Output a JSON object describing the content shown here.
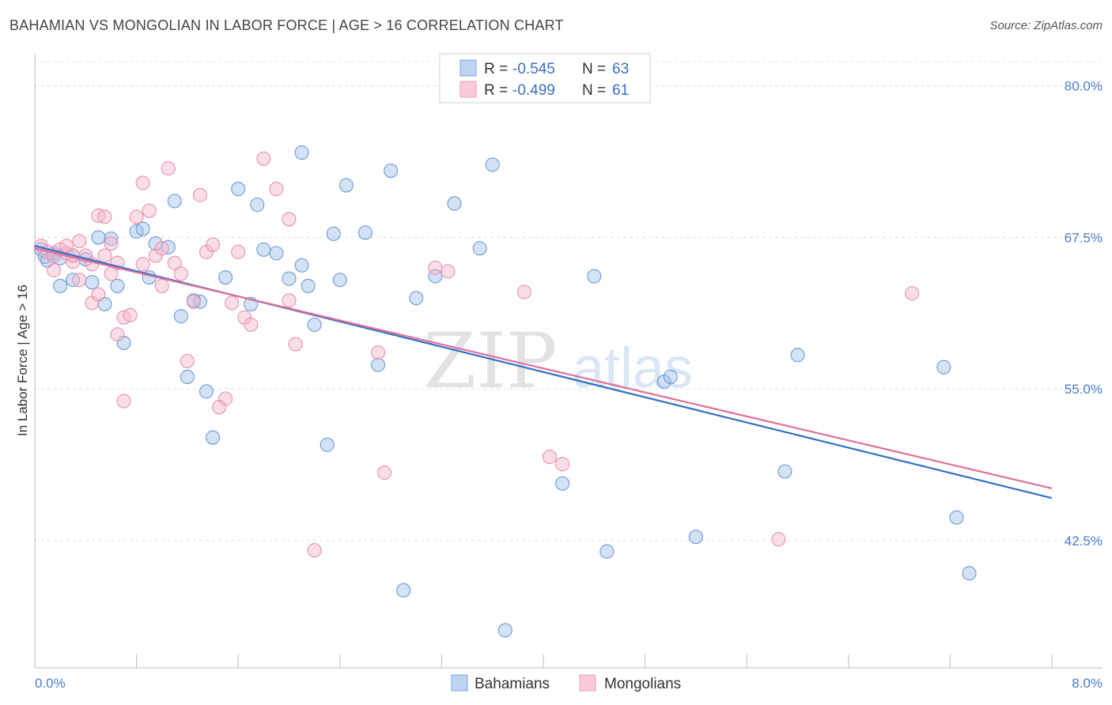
{
  "title": "BAHAMIAN VS MONGOLIAN IN LABOR FORCE | AGE > 16 CORRELATION CHART",
  "source": "Source: ZipAtlas.com",
  "watermark": {
    "zip": "ZIP",
    "atlas": "atlas"
  },
  "chart_data": {
    "type": "scatter",
    "xlabel": "",
    "ylabel": "In Labor Force | Age > 16",
    "xlim": [
      0.0,
      8.0
    ],
    "ylim": [
      32.0,
      82.0
    ],
    "x_tick_labels": [
      "0.0%",
      "8.0%"
    ],
    "y_ticks": [
      42.5,
      55.0,
      67.5,
      80.0
    ],
    "y_tick_labels": [
      "42.5%",
      "55.0%",
      "67.5%",
      "80.0%"
    ],
    "grid": true,
    "legend_placement": "top-center",
    "legend": [
      {
        "r_label": "R =",
        "r_value": "-0.545",
        "n_label": "N =",
        "n_value": "63"
      },
      {
        "r_label": "R =",
        "r_value": "-0.499",
        "n_label": "N =",
        "n_value": "61"
      }
    ],
    "series": [
      {
        "name": "Bahamians",
        "color": "#9dbfe8",
        "line_color": "#3070c8",
        "trend": [
          [
            0.0,
            66.8
          ],
          [
            8.0,
            46.0
          ]
        ],
        "points": [
          [
            0.05,
            66.5
          ],
          [
            0.08,
            65.9
          ],
          [
            0.1,
            65.6
          ],
          [
            0.15,
            66.2
          ],
          [
            0.2,
            65.8
          ],
          [
            0.3,
            66.0
          ],
          [
            0.3,
            64.0
          ],
          [
            0.4,
            65.7
          ],
          [
            0.5,
            67.5
          ],
          [
            0.6,
            67.4
          ],
          [
            0.8,
            68.0
          ],
          [
            0.85,
            68.2
          ],
          [
            0.95,
            67.0
          ],
          [
            1.05,
            66.7
          ],
          [
            1.1,
            70.5
          ],
          [
            1.2,
            56.0
          ],
          [
            1.3,
            62.2
          ],
          [
            1.4,
            51.0
          ],
          [
            1.5,
            64.2
          ],
          [
            1.6,
            71.5
          ],
          [
            1.7,
            62.0
          ],
          [
            1.75,
            70.2
          ],
          [
            1.8,
            66.5
          ],
          [
            1.9,
            66.2
          ],
          [
            2.0,
            64.1
          ],
          [
            2.1,
            65.2
          ],
          [
            2.1,
            74.5
          ],
          [
            2.15,
            63.5
          ],
          [
            2.2,
            60.3
          ],
          [
            2.3,
            50.4
          ],
          [
            2.35,
            67.8
          ],
          [
            2.4,
            64.0
          ],
          [
            2.45,
            71.8
          ],
          [
            2.6,
            67.9
          ],
          [
            2.7,
            57.0
          ],
          [
            2.8,
            73.0
          ],
          [
            2.9,
            38.4
          ],
          [
            3.0,
            62.5
          ],
          [
            3.15,
            64.3
          ],
          [
            3.3,
            70.3
          ],
          [
            3.5,
            66.6
          ],
          [
            3.6,
            73.5
          ],
          [
            3.7,
            35.1
          ],
          [
            4.15,
            47.2
          ],
          [
            4.4,
            64.3
          ],
          [
            4.5,
            41.6
          ],
          [
            4.95,
            55.6
          ],
          [
            5.0,
            56.0
          ],
          [
            5.2,
            42.8
          ],
          [
            5.9,
            48.2
          ],
          [
            6.0,
            57.8
          ],
          [
            7.15,
            56.8
          ],
          [
            7.25,
            44.4
          ],
          [
            7.35,
            39.8
          ],
          [
            0.2,
            63.5
          ],
          [
            0.45,
            63.8
          ],
          [
            0.55,
            62.0
          ],
          [
            0.7,
            58.8
          ],
          [
            0.9,
            64.2
          ],
          [
            1.15,
            61.0
          ],
          [
            1.25,
            62.3
          ],
          [
            1.35,
            54.8
          ],
          [
            0.65,
            63.5
          ]
        ]
      },
      {
        "name": "Mongolians",
        "color": "#f5b5c8",
        "line_color": "#e0709a",
        "trend": [
          [
            0.0,
            66.6
          ],
          [
            8.0,
            46.8
          ]
        ],
        "points": [
          [
            0.05,
            66.8
          ],
          [
            0.1,
            66.3
          ],
          [
            0.15,
            66.0
          ],
          [
            0.2,
            66.5
          ],
          [
            0.25,
            66.2
          ],
          [
            0.3,
            65.5
          ],
          [
            0.35,
            67.2
          ],
          [
            0.4,
            66.0
          ],
          [
            0.45,
            65.3
          ],
          [
            0.5,
            69.3
          ],
          [
            0.55,
            69.2
          ],
          [
            0.6,
            67.0
          ],
          [
            0.65,
            65.4
          ],
          [
            0.7,
            60.9
          ],
          [
            0.75,
            61.1
          ],
          [
            0.8,
            69.2
          ],
          [
            0.85,
            65.3
          ],
          [
            0.9,
            69.7
          ],
          [
            0.95,
            66.0
          ],
          [
            1.0,
            66.6
          ],
          [
            1.05,
            73.2
          ],
          [
            1.1,
            65.4
          ],
          [
            1.2,
            57.3
          ],
          [
            1.25,
            62.2
          ],
          [
            1.3,
            71.0
          ],
          [
            1.35,
            66.3
          ],
          [
            1.4,
            66.9
          ],
          [
            1.5,
            54.2
          ],
          [
            1.55,
            62.1
          ],
          [
            1.6,
            66.3
          ],
          [
            1.65,
            60.9
          ],
          [
            1.7,
            60.3
          ],
          [
            1.8,
            74.0
          ],
          [
            1.9,
            71.5
          ],
          [
            2.0,
            69.0
          ],
          [
            2.05,
            58.7
          ],
          [
            2.2,
            41.7
          ],
          [
            2.7,
            58.0
          ],
          [
            2.75,
            48.1
          ],
          [
            3.15,
            65.0
          ],
          [
            3.25,
            64.7
          ],
          [
            3.85,
            63.0
          ],
          [
            4.05,
            49.4
          ],
          [
            4.15,
            48.8
          ],
          [
            5.85,
            42.6
          ],
          [
            6.9,
            62.9
          ],
          [
            0.15,
            64.8
          ],
          [
            0.35,
            64.0
          ],
          [
            0.45,
            62.1
          ],
          [
            0.5,
            62.8
          ],
          [
            0.65,
            59.5
          ],
          [
            0.7,
            54.0
          ],
          [
            0.85,
            72.0
          ],
          [
            1.0,
            63.5
          ],
          [
            1.15,
            64.5
          ],
          [
            1.45,
            53.5
          ],
          [
            2.0,
            62.3
          ],
          [
            0.25,
            66.8
          ],
          [
            0.3,
            66.0
          ],
          [
            0.55,
            66.0
          ],
          [
            0.6,
            64.5
          ]
        ]
      }
    ]
  }
}
